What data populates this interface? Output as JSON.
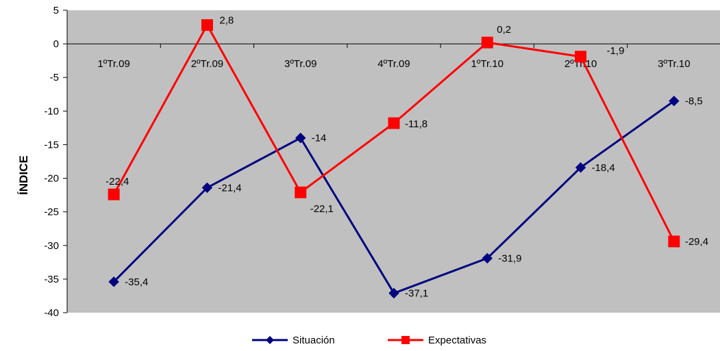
{
  "chart_data": {
    "type": "line",
    "title": "",
    "ylabel": "ÍNDICE",
    "xlabel": "",
    "ylim": [
      -40,
      5
    ],
    "ytick_step": 5,
    "y_ticks": [
      "5",
      "0",
      "-5",
      "-10",
      "-15",
      "-20",
      "-25",
      "-30",
      "-35",
      "-40"
    ],
    "categories": [
      "1ºTr.09",
      "2ºTr.09",
      "3ºTr.09",
      "4ºTr.09",
      "1ºTr.10",
      "2ºTr.10",
      "3ºTr.10"
    ],
    "series": [
      {
        "name": "Situación",
        "color": "#000080",
        "marker": "diamond",
        "values": [
          -35.4,
          -21.4,
          -14,
          -37.1,
          -31.9,
          -18.4,
          -8.5
        ],
        "labels": [
          "-35,4",
          "-21,4",
          "-14",
          "-37,1",
          "-31,9",
          "-18,4",
          "-8,5"
        ]
      },
      {
        "name": "Expectativas",
        "color": "#ff0000",
        "marker": "square",
        "values": [
          -22.4,
          2.8,
          -22.1,
          -11.8,
          0.2,
          -1.9,
          -29.4
        ],
        "labels": [
          "-22,4",
          "2,8",
          "-22,1",
          "-11,8",
          "0,2",
          "-1,9",
          "-29,4"
        ]
      }
    ],
    "plot_background": "#c0c0c0",
    "grid": false,
    "legend_position": "bottom"
  }
}
